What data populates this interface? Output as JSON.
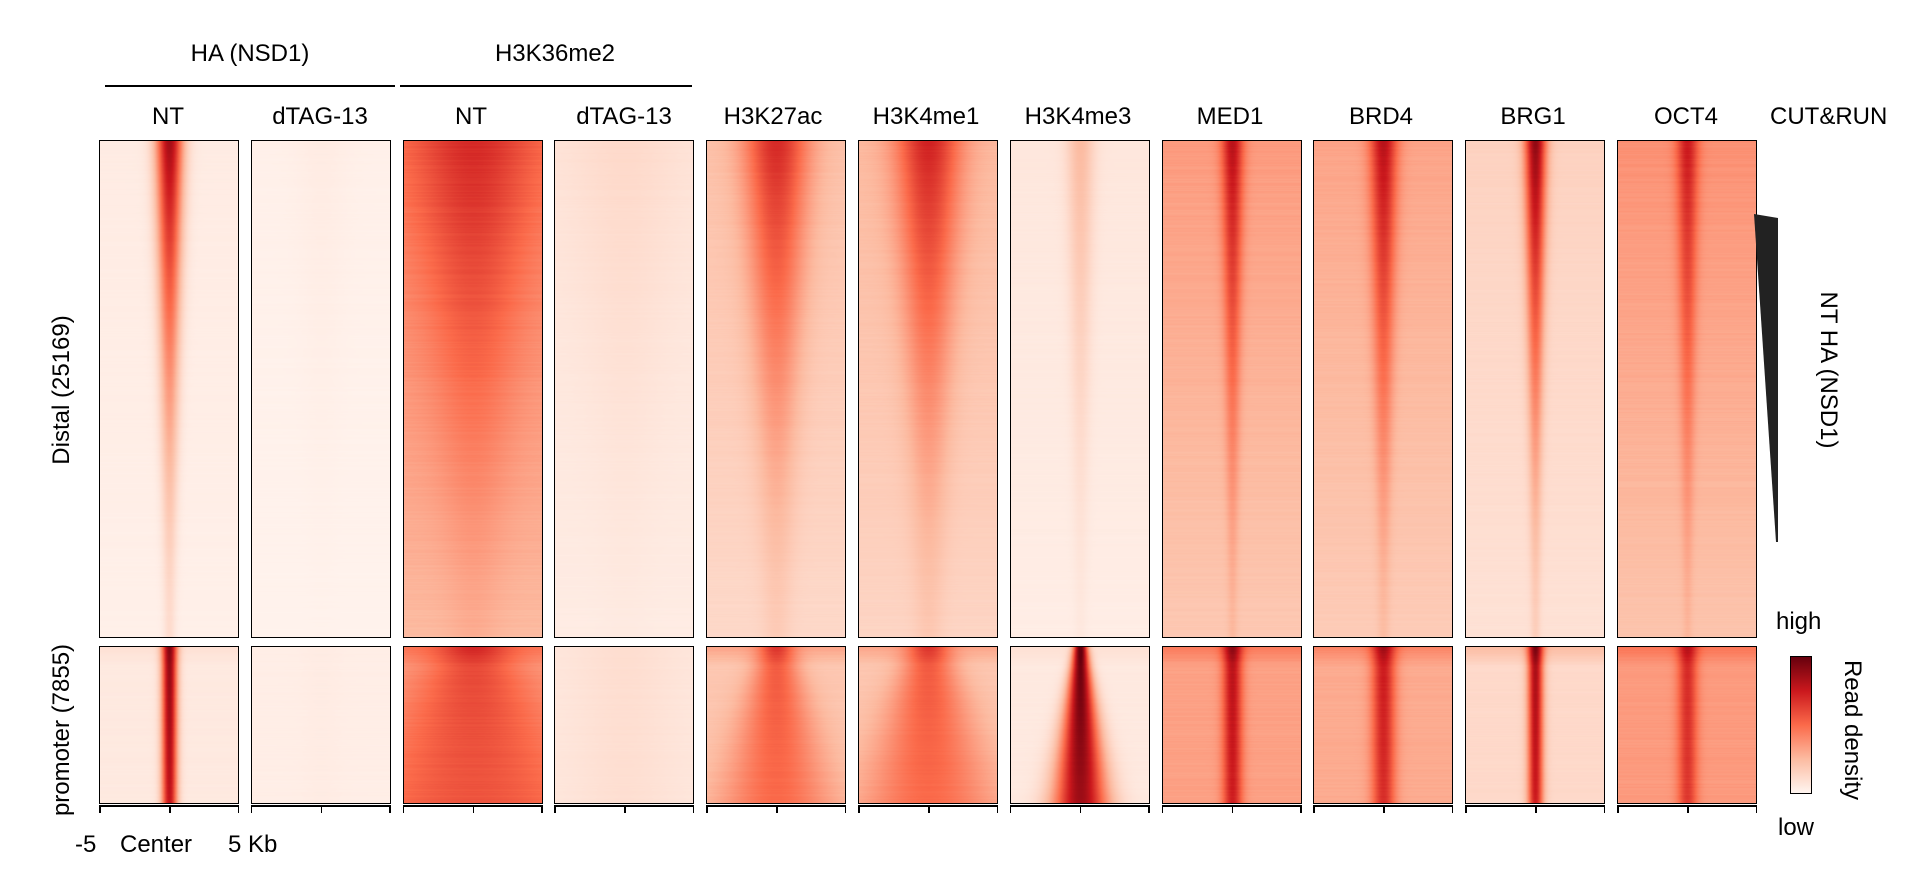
{
  "chart_data": {
    "type": "heatmap",
    "title": "",
    "groups": [
      {
        "label": "HA (NSD1)",
        "columns": [
          0,
          1
        ]
      },
      {
        "label": "H3K36me2",
        "columns": [
          2,
          3
        ]
      }
    ],
    "columns": [
      {
        "label": "NT",
        "intensity": 0.55,
        "background": 0.04,
        "center": 0.85,
        "center_width": 0.05,
        "spread": 0.1
      },
      {
        "label": "dTAG-13",
        "intensity": 0.02,
        "background": 0.02,
        "center": 0.04,
        "center_width": 0.1,
        "spread": 0.1
      },
      {
        "label": "NT",
        "intensity": 0.8,
        "background": 0.45,
        "center": 0.7,
        "center_width": 0.22,
        "spread": 0.35
      },
      {
        "label": "dTAG-13",
        "intensity": 0.08,
        "background": 0.07,
        "center": 0.12,
        "center_width": 0.2,
        "spread": 0.3
      },
      {
        "label": "H3K27ac",
        "intensity": 0.7,
        "background": 0.22,
        "center": 0.7,
        "center_width": 0.12,
        "spread": 0.3
      },
      {
        "label": "H3K4me1",
        "intensity": 0.7,
        "background": 0.25,
        "center": 0.72,
        "center_width": 0.12,
        "spread": 0.3
      },
      {
        "label": "H3K4me3",
        "intensity": 0.15,
        "background": 0.06,
        "center": 0.25,
        "center_width": 0.05,
        "spread": 0.1
      },
      {
        "label": "MED1",
        "intensity": 0.6,
        "background": 0.35,
        "center": 0.8,
        "center_width": 0.04,
        "spread": 0.1
      },
      {
        "label": "BRD4",
        "intensity": 0.65,
        "background": 0.32,
        "center": 0.8,
        "center_width": 0.05,
        "spread": 0.12
      },
      {
        "label": "BRG1",
        "intensity": 0.6,
        "background": 0.15,
        "center": 0.9,
        "center_width": 0.04,
        "spread": 0.1
      },
      {
        "label": "OCT4",
        "intensity": 0.55,
        "background": 0.38,
        "center": 0.75,
        "center_width": 0.04,
        "spread": 0.1
      }
    ],
    "promoter_columns": [
      {
        "background": 0.05,
        "center": 0.9,
        "center_width": 0.04
      },
      {
        "background": 0.03,
        "center": 0.04,
        "center_width": 0.1
      },
      {
        "background": 0.35,
        "center": 0.6,
        "center_width": 0.3
      },
      {
        "background": 0.06,
        "center": 0.1,
        "center_width": 0.25
      },
      {
        "background": 0.2,
        "center": 0.55,
        "center_width": 0.15
      },
      {
        "background": 0.2,
        "center": 0.55,
        "center_width": 0.18
      },
      {
        "background": 0.05,
        "center": 1.0,
        "center_width": 0.09
      },
      {
        "background": 0.33,
        "center": 0.8,
        "center_width": 0.05
      },
      {
        "background": 0.3,
        "center": 0.75,
        "center_width": 0.06
      },
      {
        "background": 0.12,
        "center": 0.85,
        "center_width": 0.04
      },
      {
        "background": 0.35,
        "center": 0.7,
        "center_width": 0.05
      }
    ],
    "row_groups": [
      {
        "label": "Distal (25169)",
        "count": 25169
      },
      {
        "label": "promoter (7855)",
        "count": 7855
      }
    ],
    "assay_label": "CUT&RUN",
    "sort_label": "NT HA (NSD1)",
    "x_axis": {
      "ticks": [
        "-5",
        "Center",
        "5 Kb"
      ],
      "range": [
        -5,
        5
      ],
      "unit": "Kb"
    },
    "colorbar": {
      "label": "Read density",
      "high": "high",
      "low": "low",
      "colors": [
        "#fff5f0",
        "#fcbba1",
        "#fb6a4a",
        "#cb181d",
        "#67000d"
      ]
    }
  }
}
